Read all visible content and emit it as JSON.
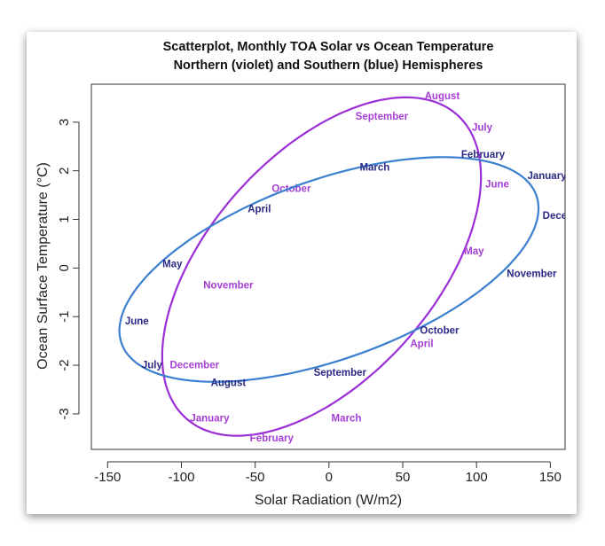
{
  "chart_data": {
    "type": "scatter",
    "title": [
      "Scatterplot, Monthly TOA Solar vs Ocean Temperature",
      "Northern (violet) and Southern (blue) Hemispheres"
    ],
    "xlabel": "Solar Radiation (W/m2)",
    "ylabel": "Ocean Surface Temperature (°C)",
    "xlim": [
      -161,
      160
    ],
    "ylim": [
      -3.73,
      3.78
    ],
    "xticks": [
      -150,
      -100,
      -50,
      0,
      50,
      100,
      150
    ],
    "yticks": [
      -3,
      -2,
      -1,
      0,
      1,
      2,
      3
    ],
    "grid": false,
    "legend": "none",
    "series": [
      {
        "name": "Northern (violet)",
        "curve_color": "#9b2fd6",
        "label_color": "#a53ed2",
        "ellipse": {
          "cx": -5,
          "cy": 0.03,
          "ax": 108,
          "ay": 3.48,
          "phase_deg": 58
        },
        "points": [
          {
            "label": "January",
            "x": -80.8,
            "y": -3.08
          },
          {
            "label": "February",
            "x": -38.8,
            "y": -3.49
          },
          {
            "label": "March",
            "x": 11.8,
            "y": -3.08
          },
          {
            "label": "April",
            "x": 62.9,
            "y": -1.55
          },
          {
            "label": "May",
            "x": 98.3,
            "y": 0.35
          },
          {
            "label": "June",
            "x": 114,
            "y": 1.73
          },
          {
            "label": "July",
            "x": 103.8,
            "y": 2.9
          },
          {
            "label": "August",
            "x": 76.7,
            "y": 3.54
          },
          {
            "label": "September",
            "x": 35.8,
            "y": 3.12
          },
          {
            "label": "October",
            "x": -25.5,
            "y": 1.64
          },
          {
            "label": "November",
            "x": -68.2,
            "y": -0.35
          },
          {
            "label": "December",
            "x": -91.1,
            "y": -1.99
          }
        ]
      },
      {
        "name": "Southern (blue)",
        "curve_color": "#3b7fcf",
        "label_color": "#2a2a86",
        "ellipse": {
          "cx": 0,
          "cy": -0.03,
          "ax": 142,
          "ay": 2.31,
          "phase_deg": 57
        },
        "points": [
          {
            "label": "January",
            "x": 147.7,
            "y": 1.9
          },
          {
            "label": "February",
            "x": 104.4,
            "y": 2.34
          },
          {
            "label": "March",
            "x": 31.0,
            "y": 2.08
          },
          {
            "label": "April",
            "x": -47.2,
            "y": 1.22
          },
          {
            "label": "May",
            "x": -106.1,
            "y": 0.09
          },
          {
            "label": "June",
            "x": -130.2,
            "y": -1.09
          },
          {
            "label": "July",
            "x": -119.9,
            "y": -1.99
          },
          {
            "label": "August",
            "x": -68.2,
            "y": -2.35
          },
          {
            "label": "September",
            "x": 7.5,
            "y": -2.14
          },
          {
            "label": "October",
            "x": 74.9,
            "y": -1.28
          },
          {
            "label": "November",
            "x": 137.4,
            "y": -0.11
          },
          {
            "label": "December",
            "x": 161.5,
            "y": 1.08
          }
        ]
      }
    ]
  }
}
